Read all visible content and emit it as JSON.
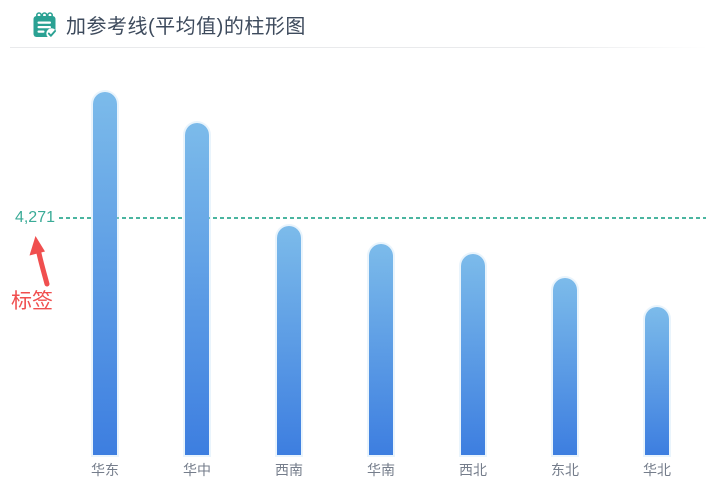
{
  "header": {
    "title": "加参考线(平均值)的柱形图",
    "icon": "notepad-check-icon"
  },
  "chart_data": {
    "type": "bar",
    "title": "加参考线(平均值)的柱形图",
    "categories": [
      "华东",
      "华中",
      "西南",
      "华南",
      "西北",
      "东北",
      "华北"
    ],
    "values": [
      6530,
      5980,
      4120,
      3800,
      3620,
      3190,
      2660
    ],
    "xlabel": "",
    "ylabel": "",
    "y_axis": "hidden",
    "grid": "off",
    "legend": "none",
    "reference_line": {
      "type": "average",
      "value": 4271,
      "label": "4,271"
    },
    "annotation": {
      "text": "标签",
      "points_to": "reference-line-label"
    },
    "colors": {
      "bar_top": "#7cbbea",
      "bar_bottom": "#3d7ee0",
      "reference_line": "#4ab5a0",
      "reference_label": "#3aab97",
      "annotation": "#f04f4f",
      "axis_label": "#757d8b",
      "title": "#3d4a5c",
      "icon": "#2aa193"
    }
  }
}
